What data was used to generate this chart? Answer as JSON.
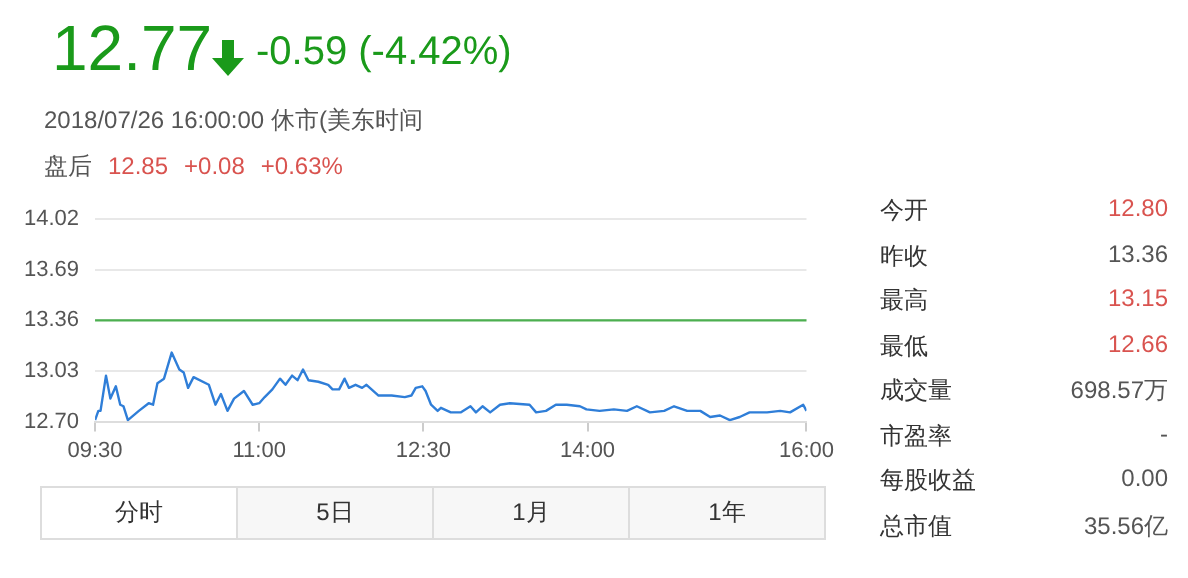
{
  "chart_data": {
    "type": "line",
    "title": "12.77",
    "subtitle": "2018/07/26 16:00:00  休市(美东时间",
    "annotations": [
      "-0.59 (-4.42%)",
      "盘后",
      "12.85",
      "+0.08",
      "+0.63%",
      "今开",
      "12.80",
      "昨收",
      "13.36",
      "最高",
      "13.15",
      "最低",
      "12.66",
      "成交量",
      "698.57万",
      "市盈率",
      "-",
      "每股收益",
      "0.00",
      "总市值",
      "35.56亿",
      "分时",
      "5日",
      "1月",
      "1年"
    ],
    "x": [
      9.5,
      9.53,
      9.55,
      9.6,
      9.64,
      9.69,
      9.73,
      9.76,
      9.8,
      9.9,
      9.99,
      10.03,
      10.07,
      10.13,
      10.2,
      10.27,
      10.31,
      10.35,
      10.4,
      10.54,
      10.6,
      10.65,
      10.71,
      10.77,
      10.86,
      10.94,
      11.0,
      11.05,
      11.12,
      11.19,
      11.24,
      11.3,
      11.35,
      11.4,
      11.45,
      11.54,
      11.63,
      11.67,
      11.73,
      11.78,
      11.82,
      11.88,
      11.94,
      11.98,
      12.09,
      12.21,
      12.33,
      12.39,
      12.43,
      12.49,
      12.52,
      12.57,
      12.63,
      12.66,
      12.75,
      12.84,
      12.93,
      12.98,
      13.04,
      13.11,
      13.2,
      13.29,
      13.47,
      13.53,
      13.62,
      13.71,
      13.81,
      13.93,
      13.99,
      14.11,
      14.24,
      14.36,
      14.45,
      14.57,
      14.7,
      14.79,
      14.91,
      15.03,
      15.12,
      15.21,
      15.3,
      15.39,
      15.48,
      15.64,
      15.76,
      15.85,
      15.97,
      16.0
    ],
    "series": [
      {
        "color": "#2f7ed8",
        "values": [
          12.71,
          12.77,
          12.77,
          13.0,
          12.85,
          12.93,
          12.81,
          12.8,
          12.71,
          12.77,
          12.82,
          12.81,
          12.95,
          12.98,
          13.15,
          13.04,
          13.02,
          12.92,
          12.99,
          12.94,
          12.81,
          12.88,
          12.77,
          12.85,
          12.9,
          12.81,
          12.82,
          12.86,
          12.91,
          12.98,
          12.94,
          13.0,
          12.97,
          13.04,
          12.97,
          12.96,
          12.94,
          12.91,
          12.91,
          12.98,
          12.92,
          12.94,
          12.92,
          12.94,
          12.87,
          12.87,
          12.86,
          12.87,
          12.92,
          12.93,
          12.9,
          12.81,
          12.77,
          12.79,
          12.76,
          12.76,
          12.8,
          12.76,
          12.8,
          12.76,
          12.81,
          12.82,
          12.81,
          12.76,
          12.77,
          12.81,
          12.81,
          12.8,
          12.78,
          12.77,
          12.78,
          12.77,
          12.8,
          12.76,
          12.77,
          12.8,
          12.77,
          12.77,
          12.73,
          12.74,
          12.71,
          12.73,
          12.76,
          12.76,
          12.77,
          12.76,
          12.81,
          12.77
        ]
      }
    ],
    "xlim": [
      9.5,
      16
    ],
    "xticks": [
      {
        "value": 9.5,
        "label": "09:30"
      },
      {
        "value": 11,
        "label": "11:00"
      },
      {
        "value": 12.5,
        "label": "12:30"
      },
      {
        "value": 14,
        "label": "14:00"
      },
      {
        "value": 16,
        "label": "16:00"
      }
    ],
    "ylim": [
      12.7,
      14.02
    ],
    "yticks": [
      {
        "value": 12.7,
        "label": "12.70"
      },
      13.03,
      13.36,
      13.69,
      14.02
    ],
    "ref_lines": [
      {
        "axis": "y",
        "value": 13.36,
        "color": "#4caf50"
      }
    ],
    "grid": "y",
    "legend": false,
    "marker": "none",
    "line_style": "solid"
  }
}
